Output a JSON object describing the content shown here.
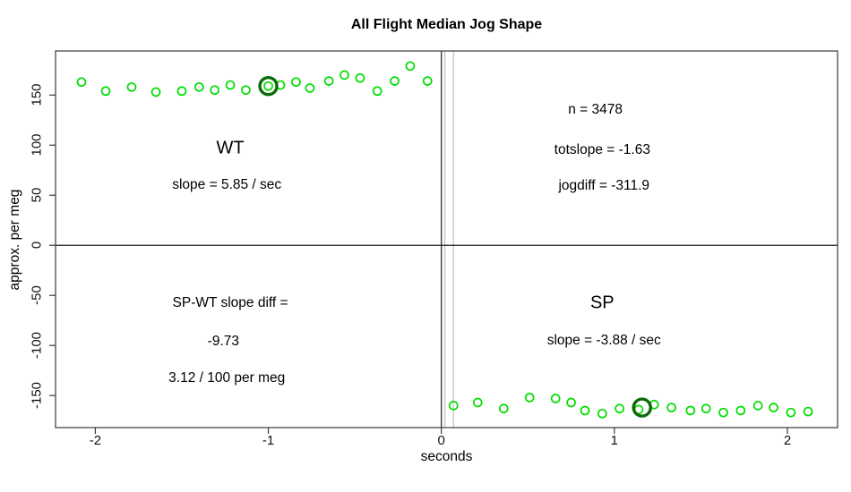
{
  "chart_data": {
    "type": "scatter",
    "title": "All Flight Median Jog Shape",
    "xlabel": "seconds",
    "ylabel": "approx. per meg",
    "xlim": [
      -2.23,
      2.29
    ],
    "ylim": [
      -182,
      194
    ],
    "x_ticks": [
      -2,
      -1,
      0,
      1,
      2
    ],
    "y_ticks": [
      -150,
      -100,
      -50,
      0,
      50,
      100,
      150
    ],
    "grid": false,
    "legend": "none",
    "marker": "open-circle",
    "reference_lines": {
      "horizontal_black_y": 0,
      "vertical_black_x": 0,
      "vertical_gray_x": [
        0.02,
        0.07
      ]
    },
    "colors": {
      "point": "#00dd00",
      "highlight": "#0a6b0a",
      "axis": "#3a3a3a",
      "zero_line": "#1a1a1a",
      "gray_line": "#c6c6c6",
      "text": "#000000"
    },
    "series": [
      {
        "name": "WT",
        "points": [
          [
            -2.08,
            163
          ],
          [
            -1.94,
            154
          ],
          [
            -1.79,
            158
          ],
          [
            -1.65,
            153
          ],
          [
            -1.5,
            154
          ],
          [
            -1.4,
            158
          ],
          [
            -1.31,
            155
          ],
          [
            -1.22,
            160
          ],
          [
            -1.13,
            155
          ],
          [
            -1.0,
            159
          ],
          [
            -0.93,
            160
          ],
          [
            -0.84,
            163
          ],
          [
            -0.76,
            157
          ],
          [
            -0.65,
            164
          ],
          [
            -0.56,
            170
          ],
          [
            -0.47,
            167
          ],
          [
            -0.37,
            154
          ],
          [
            -0.27,
            164
          ],
          [
            -0.18,
            179
          ],
          [
            -0.08,
            164
          ]
        ]
      },
      {
        "name": "SP",
        "points": [
          [
            0.07,
            -160
          ],
          [
            0.21,
            -157
          ],
          [
            0.36,
            -163
          ],
          [
            0.51,
            -152
          ],
          [
            0.66,
            -153
          ],
          [
            0.75,
            -157
          ],
          [
            0.83,
            -165
          ],
          [
            0.93,
            -168
          ],
          [
            1.03,
            -163
          ],
          [
            1.14,
            -164
          ],
          [
            1.23,
            -159
          ],
          [
            1.33,
            -162
          ],
          [
            1.44,
            -165
          ],
          [
            1.53,
            -163
          ],
          [
            1.63,
            -167
          ],
          [
            1.73,
            -165
          ],
          [
            1.83,
            -160
          ],
          [
            1.92,
            -162
          ],
          [
            2.02,
            -167
          ],
          [
            2.12,
            -166
          ]
        ]
      }
    ],
    "highlight_points": [
      {
        "x": -1.0,
        "y": 159
      },
      {
        "x": 1.16,
        "y": -162
      }
    ],
    "annotations": [
      {
        "text": "WT",
        "x": -1.22,
        "y": 97,
        "size": "large"
      },
      {
        "text": "slope = 5.85 / sec",
        "x": -1.24,
        "y": 60,
        "size": "normal"
      },
      {
        "text": "n = 3478",
        "x": 0.89,
        "y": 135,
        "size": "normal"
      },
      {
        "text": "totslope = -1.63",
        "x": 0.93,
        "y": 95,
        "size": "normal"
      },
      {
        "text": "jogdiff = -311.9",
        "x": 0.94,
        "y": 59,
        "size": "normal"
      },
      {
        "text": "SP-WT slope diff =",
        "x": -1.22,
        "y": -58,
        "size": "normal"
      },
      {
        "text": "-9.73",
        "x": -1.26,
        "y": -96,
        "size": "normal"
      },
      {
        "text": "3.12 / 100 per meg",
        "x": -1.24,
        "y": -133,
        "size": "normal"
      },
      {
        "text": "SP",
        "x": 0.93,
        "y": -58,
        "size": "large"
      },
      {
        "text": "slope = -3.88 / sec",
        "x": 0.94,
        "y": -95,
        "size": "normal"
      }
    ]
  }
}
